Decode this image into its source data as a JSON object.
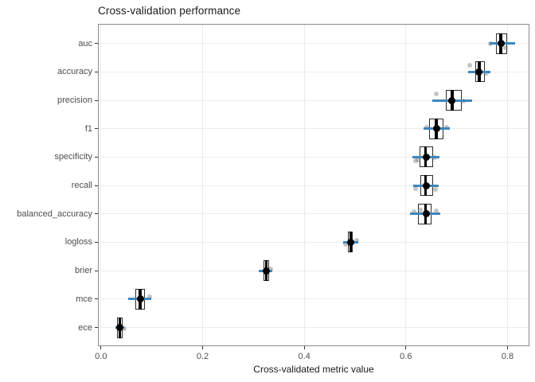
{
  "title": "Cross-validation performance",
  "chart_data": {
    "type": "boxplot",
    "orientation": "horizontal",
    "title": "Cross-validation performance",
    "xlabel": "Cross-validated metric value",
    "ylabel": "",
    "xlim": [
      -0.006,
      0.843
    ],
    "x_ticks": [
      0.0,
      0.2,
      0.4,
      0.6,
      0.8
    ],
    "x_tick_labels": [
      "0.0",
      "0.2",
      "0.4",
      "0.6",
      "0.8"
    ],
    "categories": [
      "auc",
      "accuracy",
      "precision",
      "f1",
      "specificity",
      "recall",
      "balanced_accuracy",
      "logloss",
      "brier",
      "mce",
      "ece"
    ],
    "grid": "major-only",
    "legend": "none",
    "colors": {
      "interval_line": "#3d87bf",
      "box_border": "#2b2b2b",
      "median": "#000000",
      "mean_point": "#000000",
      "jitter_point": "#7d7d7d",
      "gridline": "#ebebeb",
      "panel_border": "#8c8c8c",
      "axis_text": "#4d4d4d",
      "title_text": "#1a1a1a"
    },
    "rows": [
      {
        "metric": "auc",
        "q1": 0.778,
        "median": 0.787,
        "q3": 0.799,
        "mean": 0.787,
        "interval": [
          0.765,
          0.815
        ],
        "points": [
          {
            "v": 0.766,
            "dy": 0
          },
          {
            "v": 0.796,
            "dy": 5
          }
        ]
      },
      {
        "metric": "accuracy",
        "q1": 0.736,
        "median": 0.744,
        "q3": 0.756,
        "mean": 0.744,
        "interval": [
          0.723,
          0.766
        ],
        "points": [
          {
            "v": 0.726,
            "dy": -8
          },
          {
            "v": 0.758,
            "dy": 2
          }
        ]
      },
      {
        "metric": "precision",
        "q1": 0.679,
        "median": 0.691,
        "q3": 0.71,
        "mean": 0.691,
        "interval": [
          0.652,
          0.731
        ],
        "points": [
          {
            "v": 0.66,
            "dy": -8
          },
          {
            "v": 0.713,
            "dy": 1
          }
        ]
      },
      {
        "metric": "f1",
        "q1": 0.646,
        "median": 0.66,
        "q3": 0.674,
        "mean": 0.661,
        "interval": [
          0.635,
          0.687
        ],
        "points": [
          {
            "v": 0.641,
            "dy": -2
          },
          {
            "v": 0.68,
            "dy": -2
          }
        ]
      },
      {
        "metric": "specificity",
        "q1": 0.627,
        "median": 0.639,
        "q3": 0.653,
        "mean": 0.64,
        "interval": [
          0.613,
          0.666
        ],
        "points": [
          {
            "v": 0.619,
            "dy": 5
          },
          {
            "v": 0.623,
            "dy": 4
          },
          {
            "v": 0.657,
            "dy": 1
          }
        ]
      },
      {
        "metric": "recall",
        "q1": 0.628,
        "median": 0.639,
        "q3": 0.654,
        "mean": 0.64,
        "interval": [
          0.615,
          0.664
        ],
        "points": [
          {
            "v": 0.619,
            "dy": 4
          },
          {
            "v": 0.658,
            "dy": 5
          }
        ]
      },
      {
        "metric": "balanced_accuracy",
        "q1": 0.623,
        "median": 0.639,
        "q3": 0.651,
        "mean": 0.64,
        "interval": [
          0.608,
          0.668
        ],
        "points": [
          {
            "v": 0.616,
            "dy": -3
          },
          {
            "v": 0.628,
            "dy": -5
          },
          {
            "v": 0.659,
            "dy": -4
          }
        ]
      },
      {
        "metric": "logloss",
        "q1": 0.486,
        "median": 0.491,
        "q3": 0.496,
        "mean": 0.491,
        "interval": [
          0.477,
          0.506
        ],
        "points": [
          {
            "v": 0.481,
            "dy": 3
          },
          {
            "v": 0.503,
            "dy": -2
          }
        ]
      },
      {
        "metric": "brier",
        "q1": 0.32,
        "median": 0.325,
        "q3": 0.331,
        "mean": 0.326,
        "interval": [
          0.311,
          0.337
        ],
        "points": [
          {
            "v": 0.334,
            "dy": -2
          }
        ]
      },
      {
        "metric": "mce",
        "q1": 0.067,
        "median": 0.077,
        "q3": 0.087,
        "mean": 0.078,
        "interval": [
          0.054,
          0.099
        ],
        "points": [
          {
            "v": 0.096,
            "dy": -3
          }
        ]
      },
      {
        "metric": "ece",
        "q1": 0.032,
        "median": 0.037,
        "q3": 0.042,
        "mean": 0.037,
        "interval": [
          0.028,
          0.046
        ],
        "points": [
          {
            "v": 0.046,
            "dy": 1
          }
        ]
      }
    ]
  }
}
